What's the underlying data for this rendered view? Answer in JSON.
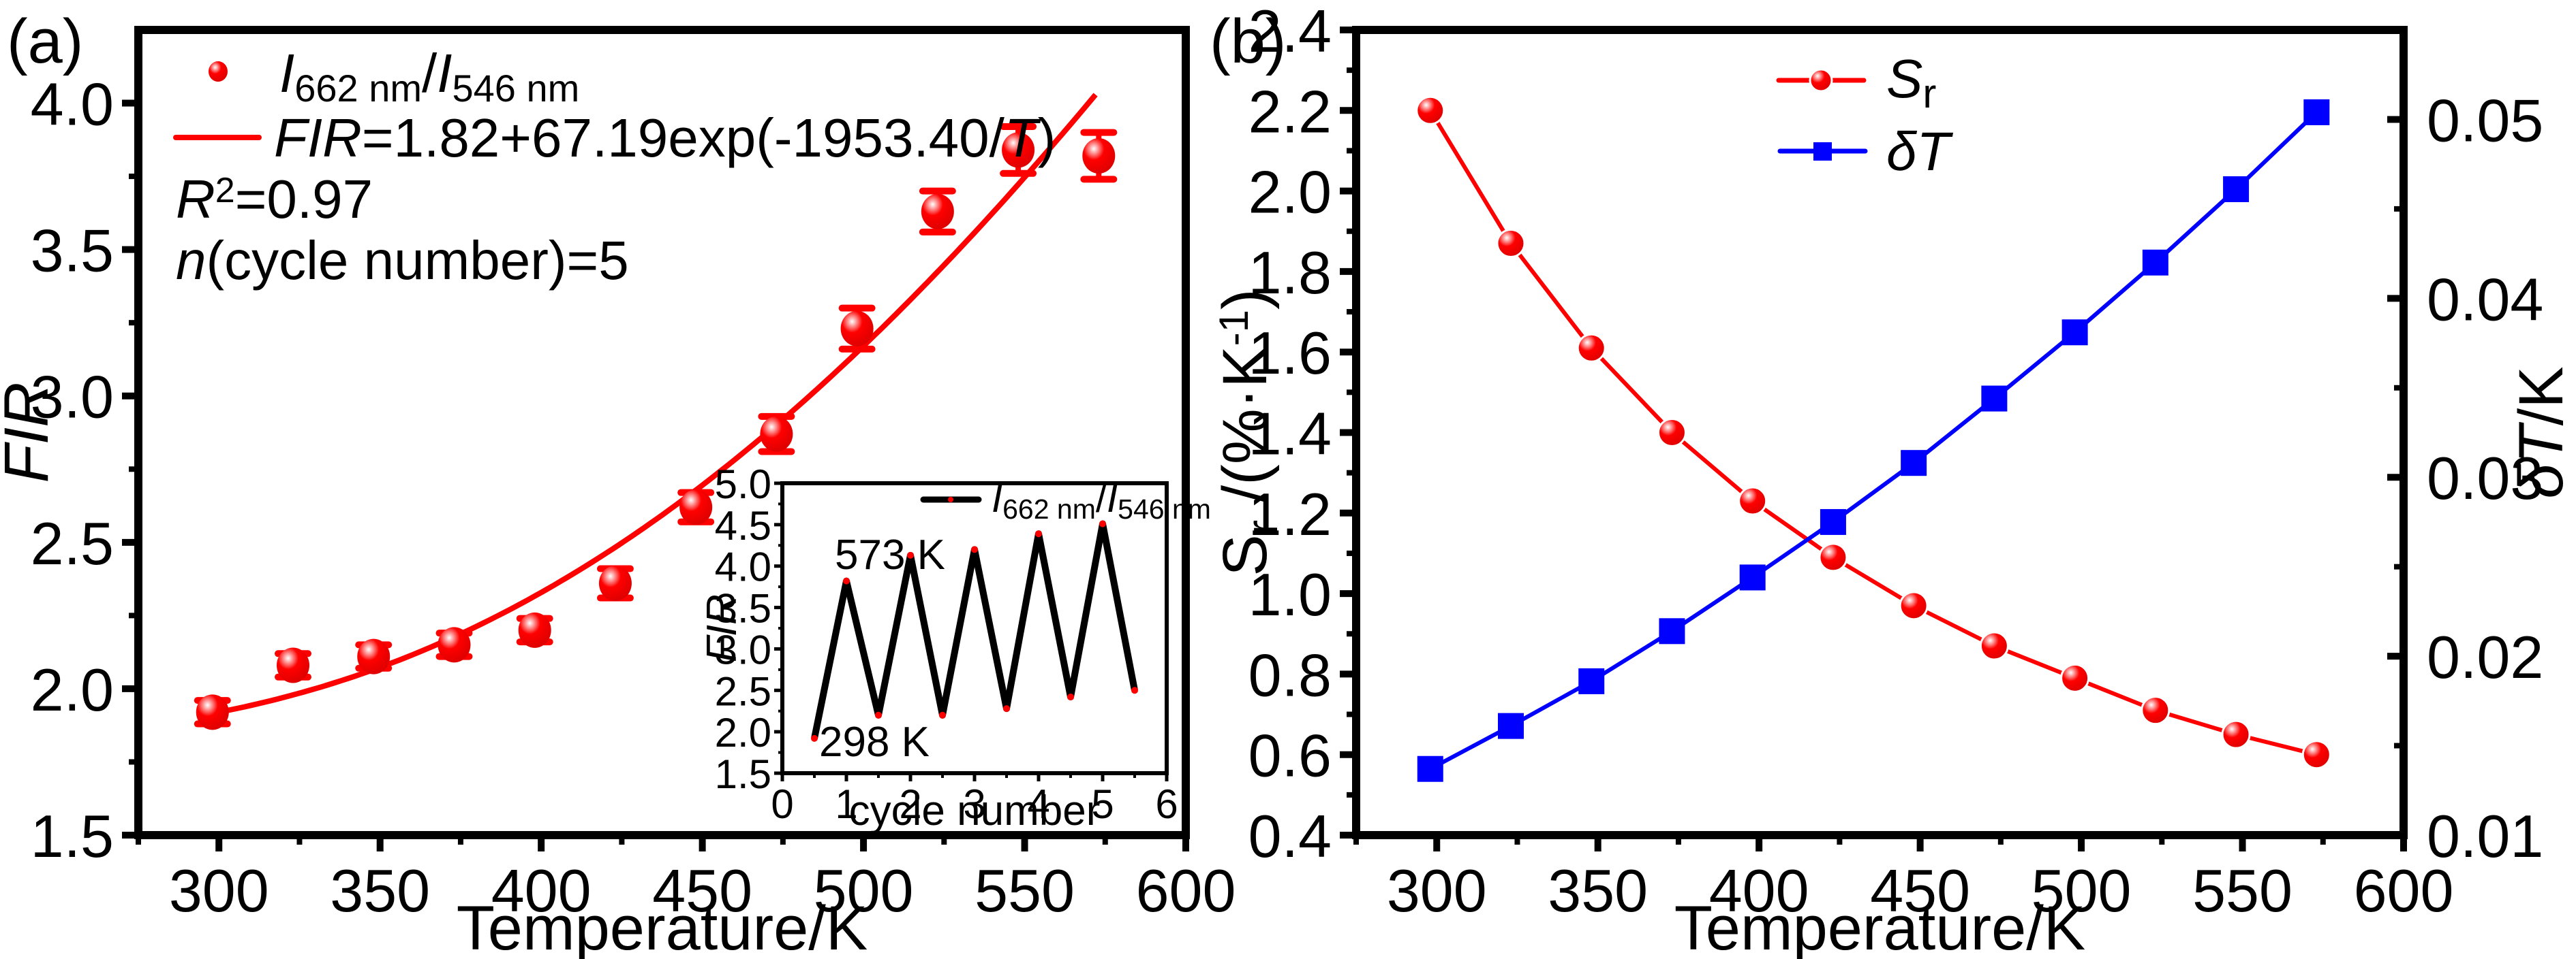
{
  "chart_data": [
    {
      "panel": "(a)",
      "type": "scatter",
      "title": "",
      "xlabel": "Temperature/K",
      "ylabel": "FIR",
      "xlim": [
        275,
        600
      ],
      "ylim": [
        1.5,
        4.25
      ],
      "xticks": [
        300,
        350,
        400,
        450,
        500,
        550,
        600
      ],
      "yticks": [
        1.5,
        2.0,
        2.5,
        3.0,
        3.5,
        4.0
      ],
      "grid": false,
      "legend_position": "top-left",
      "series": [
        {
          "name": "I662 nm/I546 nm",
          "kind": "scatter-errorbar",
          "color": "#ff0000",
          "x": [
            298,
            323,
            348,
            373,
            398,
            423,
            448,
            473,
            498,
            523,
            548,
            573
          ],
          "y": [
            1.92,
            2.08,
            2.11,
            2.15,
            2.2,
            2.36,
            2.62,
            2.87,
            3.23,
            3.63,
            3.84,
            3.82
          ],
          "yerr": [
            0.04,
            0.04,
            0.04,
            0.04,
            0.04,
            0.05,
            0.05,
            0.06,
            0.07,
            0.07,
            0.08,
            0.08
          ]
        },
        {
          "name": "FIR=1.82+67.19exp(-1953.40/T)",
          "kind": "fit-line",
          "color": "#ff0000",
          "function": {
            "A": 1.82,
            "B": 67.19,
            "C": -1953.4
          },
          "x_range": [
            298,
            573
          ]
        }
      ],
      "legend": {
        "entries": [
          {
            "parts": [
              {
                "t": "I",
                "i": true
              },
              {
                "t": "662 nm",
                "sub": true
              },
              {
                "t": "/"
              },
              {
                "t": "I",
                "i": true
              },
              {
                "t": "546 nm",
                "sub": true
              }
            ]
          },
          {
            "parts": [
              {
                "t": "FIR",
                "i": true
              },
              {
                "t": "=1.82+67.19exp(-1953.40/"
              },
              {
                "t": "T",
                "i": true
              },
              {
                "t": ")"
              }
            ]
          }
        ]
      },
      "annotations": {
        "r_squared_label": "R",
        "r_squared_sup": "2",
        "r_squared_value": "=0.97",
        "n_label": "n",
        "n_text": "(cycle number)=5"
      },
      "inset": {
        "type": "line",
        "xlabel": "cycle number",
        "ylabel": "FIR",
        "xlim": [
          0,
          6
        ],
        "ylim": [
          1.5,
          5.0
        ],
        "xticks": [
          0,
          1,
          2,
          3,
          4,
          5,
          6
        ],
        "yticks": [
          1.5,
          2.0,
          2.5,
          3.0,
          3.5,
          4.0,
          4.5,
          5.0
        ],
        "line_color": "#000000",
        "marker_color": "#ff0000",
        "legend": [
          {
            "t": "I",
            "i": true
          },
          {
            "t": "662 nm",
            "sub": true
          },
          {
            "t": "/"
          },
          {
            "t": "I",
            "i": true
          },
          {
            "t": "546 nm",
            "sub": true
          }
        ],
        "x": [
          0.5,
          1.0,
          1.5,
          2.0,
          2.5,
          3.0,
          3.5,
          4.0,
          4.5,
          5.0,
          5.5
        ],
        "y": [
          1.92,
          3.82,
          2.2,
          4.13,
          2.2,
          4.2,
          2.28,
          4.39,
          2.42,
          4.51,
          2.5
        ],
        "annotations": [
          {
            "text": "573 K",
            "x": 1.0,
            "y": 3.82
          },
          {
            "text": "298 K",
            "x": 0.5,
            "y": 1.92
          }
        ]
      }
    },
    {
      "panel": "(b)",
      "type": "line",
      "title": "",
      "xlabel": "Temperature/K",
      "ylabel_left": "Sr /(%·K-1)",
      "ylabel_right": "δT/K",
      "xlim": [
        275,
        600
      ],
      "ylim_left": [
        0.4,
        2.4
      ],
      "ylim_right": [
        0.01,
        0.055
      ],
      "xticks": [
        300,
        350,
        400,
        450,
        500,
        550,
        600
      ],
      "yticks_left": [
        0.4,
        0.6,
        0.8,
        1.0,
        1.2,
        1.4,
        1.6,
        1.8,
        2.0,
        2.2,
        2.4
      ],
      "yticks_right": [
        0.01,
        0.02,
        0.03,
        0.04,
        0.05
      ],
      "grid": false,
      "legend_position": "top-center",
      "x": [
        298,
        323,
        348,
        373,
        398,
        423,
        448,
        473,
        498,
        523,
        548,
        573
      ],
      "series": [
        {
          "name": "Sr",
          "axis": "left",
          "marker": "circle",
          "color": "#ff0000",
          "values": [
            2.2,
            1.87,
            1.61,
            1.4,
            1.23,
            1.09,
            0.97,
            0.87,
            0.79,
            0.71,
            0.65,
            0.6
          ]
        },
        {
          "name": "δT",
          "axis": "right",
          "marker": "square",
          "color": "#0000ff",
          "values": [
            0.0137,
            0.0161,
            0.0186,
            0.0214,
            0.0244,
            0.0275,
            0.0308,
            0.0344,
            0.0381,
            0.042,
            0.0461,
            0.0504
          ]
        }
      ],
      "legend": {
        "entries": [
          {
            "parts": [
              {
                "t": "S",
                "i": true
              },
              {
                "t": "r",
                "sub": true
              }
            ]
          },
          {
            "parts": [
              {
                "t": "δT",
                "i": true
              }
            ]
          }
        ]
      },
      "ylabel_left_parts": [
        {
          "t": "S"
        },
        {
          "t": "r",
          "sub": true
        },
        {
          "t": " /(%·K"
        },
        {
          "t": "-1",
          "sup": true
        },
        {
          "t": ")"
        }
      ],
      "ylabel_right_parts": [
        {
          "t": "δT",
          "i": true
        },
        {
          "t": "/K"
        }
      ]
    }
  ]
}
